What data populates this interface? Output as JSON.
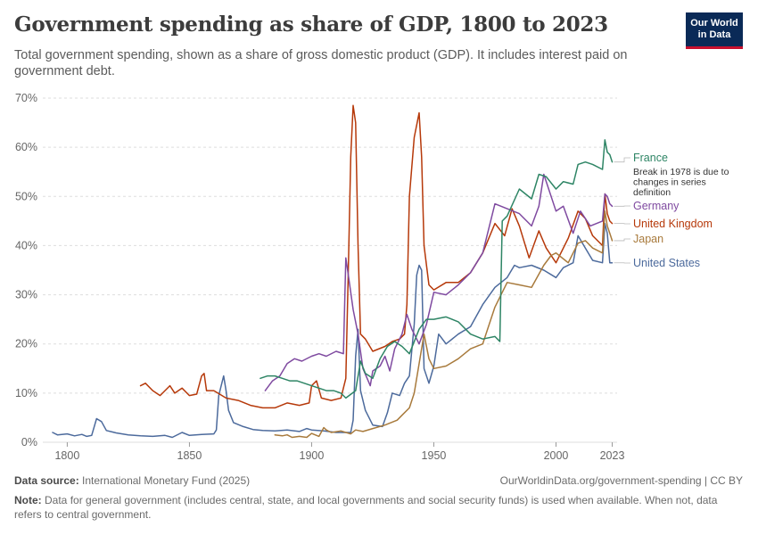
{
  "title": "Government spending as share of GDP, 1800 to 2023",
  "subtitle": "Total government spending, shown as a share of gross domestic product (GDP). It includes interest paid on government debt.",
  "logo": {
    "line1": "Our World",
    "line2": "in Data"
  },
  "footer": {
    "source_label": "Data source:",
    "source_text": " International Monetary Fund (2025)",
    "url_text": "OurWorldinData.org/government-spending | CC BY",
    "note_label": "Note:",
    "note_text": " Data for general government (includes central, state, and local governments and social security funds) is used when available. When not, data refers to central government."
  },
  "colors": {
    "France": "#2e8565",
    "Germany": "#7f4aa0",
    "United Kingdom": "#b6390a",
    "Japan": "#a87a3c",
    "United States": "#4c6a9c",
    "grid": "#dddddd",
    "axis_text": "#666666"
  },
  "chart_data": {
    "type": "line",
    "xlim": [
      1800,
      2023
    ],
    "ylim": [
      0,
      70
    ],
    "x_ticks": [
      1800,
      1850,
      1900,
      1950,
      2000,
      2023
    ],
    "x_tick_labels": [
      "1800",
      "1850",
      "1900",
      "1950",
      "2000",
      "2023"
    ],
    "y_ticks": [
      0,
      10,
      20,
      30,
      40,
      50,
      60,
      70
    ],
    "y_tick_labels": [
      "0%",
      "10%",
      "20%",
      "30%",
      "40%",
      "50%",
      "60%",
      "70%"
    ],
    "grid": "horizontal dashed",
    "legend": "right, labels at line ends",
    "annotations": [
      {
        "series": "France",
        "lines": [
          "Break in 1978 is due to",
          "changes in series",
          "definition"
        ]
      }
    ],
    "series": [
      {
        "name": "United States",
        "points": [
          [
            1794,
            2
          ],
          [
            1796,
            1.5
          ],
          [
            1800,
            1.7
          ],
          [
            1803,
            1.3
          ],
          [
            1806,
            1.6
          ],
          [
            1808,
            1.2
          ],
          [
            1810,
            1.4
          ],
          [
            1812,
            4.8
          ],
          [
            1814,
            4.2
          ],
          [
            1816,
            2.4
          ],
          [
            1820,
            1.9
          ],
          [
            1825,
            1.5
          ],
          [
            1830,
            1.3
          ],
          [
            1835,
            1.2
          ],
          [
            1840,
            1.4
          ],
          [
            1843,
            1.0
          ],
          [
            1847,
            2.0
          ],
          [
            1850,
            1.4
          ],
          [
            1855,
            1.6
          ],
          [
            1860,
            1.7
          ],
          [
            1861,
            2.5
          ],
          [
            1862,
            9.5
          ],
          [
            1864,
            13.5
          ],
          [
            1865,
            10.5
          ],
          [
            1866,
            6.5
          ],
          [
            1868,
            4.0
          ],
          [
            1872,
            3.2
          ],
          [
            1876,
            2.6
          ],
          [
            1880,
            2.4
          ],
          [
            1885,
            2.3
          ],
          [
            1890,
            2.5
          ],
          [
            1895,
            2.2
          ],
          [
            1898,
            2.8
          ],
          [
            1900,
            2.5
          ],
          [
            1905,
            2.3
          ],
          [
            1910,
            2.0
          ],
          [
            1914,
            2.0
          ],
          [
            1916,
            2.0
          ],
          [
            1917,
            4.5
          ],
          [
            1918,
            17.5
          ],
          [
            1919,
            23.0
          ],
          [
            1920,
            10.5
          ],
          [
            1922,
            6.5
          ],
          [
            1925,
            3.5
          ],
          [
            1929,
            3.2
          ],
          [
            1931,
            6.0
          ],
          [
            1933,
            10.0
          ],
          [
            1936,
            9.5
          ],
          [
            1938,
            12.0
          ],
          [
            1940,
            13.5
          ],
          [
            1942,
            24.0
          ],
          [
            1943,
            34.0
          ],
          [
            1944,
            36.0
          ],
          [
            1945,
            35.0
          ],
          [
            1946,
            15.0
          ],
          [
            1948,
            12.0
          ],
          [
            1950,
            15.5
          ],
          [
            1952,
            22.0
          ],
          [
            1955,
            20.0
          ],
          [
            1960,
            22.0
          ],
          [
            1965,
            23.5
          ],
          [
            1970,
            28.0
          ],
          [
            1975,
            31.5
          ],
          [
            1980,
            33.5
          ],
          [
            1983,
            36.0
          ],
          [
            1985,
            35.5
          ],
          [
            1990,
            36.0
          ],
          [
            1995,
            35.0
          ],
          [
            2000,
            33.5
          ],
          [
            2003,
            35.5
          ],
          [
            2007,
            36.5
          ],
          [
            2009,
            42.0
          ],
          [
            2012,
            39.5
          ],
          [
            2015,
            37.0
          ],
          [
            2019,
            36.5
          ],
          [
            2020,
            44.5
          ],
          [
            2021,
            42.5
          ],
          [
            2022,
            36.5
          ],
          [
            2023,
            36.5
          ]
        ]
      },
      {
        "name": "United Kingdom",
        "points": [
          [
            1830,
            11.5
          ],
          [
            1832,
            12.0
          ],
          [
            1835,
            10.5
          ],
          [
            1838,
            9.5
          ],
          [
            1842,
            11.5
          ],
          [
            1844,
            10.0
          ],
          [
            1847,
            11.0
          ],
          [
            1850,
            9.5
          ],
          [
            1853,
            9.8
          ],
          [
            1855,
            13.5
          ],
          [
            1856,
            14.0
          ],
          [
            1857,
            10.5
          ],
          [
            1860,
            10.5
          ],
          [
            1865,
            9.0
          ],
          [
            1870,
            8.5
          ],
          [
            1875,
            7.5
          ],
          [
            1880,
            7.0
          ],
          [
            1885,
            7.0
          ],
          [
            1890,
            8.0
          ],
          [
            1895,
            7.5
          ],
          [
            1899,
            8.0
          ],
          [
            1900,
            11.5
          ],
          [
            1902,
            12.5
          ],
          [
            1904,
            9.0
          ],
          [
            1908,
            8.5
          ],
          [
            1912,
            9.0
          ],
          [
            1914,
            13.0
          ],
          [
            1915,
            35.0
          ],
          [
            1916,
            58.0
          ],
          [
            1917,
            68.5
          ],
          [
            1918,
            65.0
          ],
          [
            1919,
            40.0
          ],
          [
            1920,
            22.0
          ],
          [
            1922,
            21.0
          ],
          [
            1925,
            18.5
          ],
          [
            1930,
            19.5
          ],
          [
            1933,
            20.5
          ],
          [
            1936,
            21.0
          ],
          [
            1938,
            22.0
          ],
          [
            1939,
            28.0
          ],
          [
            1940,
            50.0
          ],
          [
            1942,
            62.0
          ],
          [
            1944,
            67.0
          ],
          [
            1945,
            58.0
          ],
          [
            1946,
            40.0
          ],
          [
            1948,
            32.0
          ],
          [
            1950,
            31.0
          ],
          [
            1955,
            32.5
          ],
          [
            1960,
            32.5
          ],
          [
            1965,
            34.5
          ],
          [
            1970,
            38.5
          ],
          [
            1975,
            44.5
          ],
          [
            1979,
            42.0
          ],
          [
            1982,
            47.5
          ],
          [
            1985,
            44.0
          ],
          [
            1989,
            37.5
          ],
          [
            1993,
            43.0
          ],
          [
            1996,
            39.5
          ],
          [
            2000,
            36.5
          ],
          [
            2005,
            41.5
          ],
          [
            2009,
            47.0
          ],
          [
            2012,
            45.5
          ],
          [
            2015,
            42.0
          ],
          [
            2019,
            40.0
          ],
          [
            2020,
            50.5
          ],
          [
            2021,
            46.5
          ],
          [
            2022,
            45.0
          ],
          [
            2023,
            44.5
          ]
        ]
      },
      {
        "name": "Japan",
        "points": [
          [
            1885,
            1.5
          ],
          [
            1888,
            1.3
          ],
          [
            1890,
            1.5
          ],
          [
            1892,
            1.0
          ],
          [
            1895,
            1.2
          ],
          [
            1898,
            1.0
          ],
          [
            1900,
            1.8
          ],
          [
            1903,
            1.2
          ],
          [
            1905,
            3.0
          ],
          [
            1906,
            2.5
          ],
          [
            1908,
            2.0
          ],
          [
            1912,
            2.3
          ],
          [
            1916,
            1.7
          ],
          [
            1918,
            2.5
          ],
          [
            1921,
            2.2
          ],
          [
            1925,
            2.8
          ],
          [
            1930,
            3.5
          ],
          [
            1935,
            4.5
          ],
          [
            1937,
            5.5
          ],
          [
            1940,
            7.0
          ],
          [
            1942,
            10.0
          ],
          [
            1944,
            16.0
          ],
          [
            1946,
            22.0
          ],
          [
            1948,
            17.0
          ],
          [
            1950,
            15.0
          ],
          [
            1955,
            15.5
          ],
          [
            1960,
            17.0
          ],
          [
            1965,
            19.0
          ],
          [
            1970,
            20.0
          ],
          [
            1975,
            27.5
          ],
          [
            1980,
            32.5
          ],
          [
            1985,
            32.0
          ],
          [
            1990,
            31.5
          ],
          [
            1995,
            36.0
          ],
          [
            1998,
            38.0
          ],
          [
            2000,
            38.5
          ],
          [
            2005,
            36.5
          ],
          [
            2009,
            40.5
          ],
          [
            2012,
            41.0
          ],
          [
            2015,
            39.5
          ],
          [
            2019,
            38.5
          ],
          [
            2020,
            47.0
          ],
          [
            2021,
            44.0
          ],
          [
            2022,
            42.5
          ],
          [
            2023,
            41.0
          ]
        ]
      },
      {
        "name": "Germany",
        "points": [
          [
            1881,
            10.5
          ],
          [
            1884,
            12.5
          ],
          [
            1887,
            13.5
          ],
          [
            1890,
            16.0
          ],
          [
            1893,
            17.0
          ],
          [
            1896,
            16.5
          ],
          [
            1900,
            17.5
          ],
          [
            1903,
            18.0
          ],
          [
            1906,
            17.5
          ],
          [
            1910,
            18.5
          ],
          [
            1913,
            18.0
          ],
          [
            1914,
            37.5
          ],
          [
            1915,
            34.0
          ],
          [
            1917,
            27.0
          ],
          [
            1919,
            22.0
          ],
          [
            1921,
            15.0
          ],
          [
            1924,
            11.5
          ],
          [
            1925,
            14.5
          ],
          [
            1928,
            15.5
          ],
          [
            1930,
            17.5
          ],
          [
            1932,
            14.5
          ],
          [
            1934,
            19.0
          ],
          [
            1937,
            22.0
          ],
          [
            1939,
            26.0
          ],
          [
            1941,
            23.0
          ],
          [
            1944,
            20.0
          ],
          [
            1947,
            24.0
          ],
          [
            1950,
            30.5
          ],
          [
            1955,
            30.0
          ],
          [
            1960,
            32.0
          ],
          [
            1965,
            34.5
          ],
          [
            1970,
            38.5
          ],
          [
            1975,
            48.5
          ],
          [
            1980,
            47.5
          ],
          [
            1985,
            46.5
          ],
          [
            1990,
            44.0
          ],
          [
            1993,
            48.0
          ],
          [
            1995,
            54.5
          ],
          [
            2000,
            47.0
          ],
          [
            2003,
            48.0
          ],
          [
            2007,
            42.5
          ],
          [
            2010,
            47.0
          ],
          [
            2014,
            44.0
          ],
          [
            2019,
            45.0
          ],
          [
            2020,
            50.5
          ],
          [
            2021,
            50.0
          ],
          [
            2022,
            48.5
          ],
          [
            2023,
            48.0
          ]
        ]
      },
      {
        "name": "France",
        "points": [
          [
            1879,
            13.0
          ],
          [
            1882,
            13.5
          ],
          [
            1885,
            13.5
          ],
          [
            1888,
            13.0
          ],
          [
            1891,
            12.5
          ],
          [
            1894,
            12.5
          ],
          [
            1897,
            12.0
          ],
          [
            1900,
            11.5
          ],
          [
            1903,
            11.0
          ],
          [
            1906,
            10.5
          ],
          [
            1909,
            10.5
          ],
          [
            1912,
            10.0
          ],
          [
            1914,
            9.0
          ],
          [
            1918,
            10.5
          ],
          [
            1920,
            16.5
          ],
          [
            1922,
            14.0
          ],
          [
            1925,
            13.0
          ],
          [
            1928,
            17.0
          ],
          [
            1931,
            19.5
          ],
          [
            1934,
            20.5
          ],
          [
            1937,
            19.5
          ],
          [
            1940,
            18.0
          ],
          [
            1944,
            23.0
          ],
          [
            1947,
            25.0
          ],
          [
            1950,
            25.0
          ],
          [
            1955,
            25.5
          ],
          [
            1960,
            24.5
          ],
          [
            1965,
            22.0
          ],
          [
            1970,
            21.0
          ],
          [
            1975,
            21.5
          ],
          [
            1977,
            20.5
          ],
          [
            1978,
            45.0
          ],
          [
            1980,
            46.0
          ],
          [
            1985,
            51.5
          ],
          [
            1990,
            49.5
          ],
          [
            1993,
            54.5
          ],
          [
            1996,
            54.0
          ],
          [
            2000,
            51.5
          ],
          [
            2003,
            53.0
          ],
          [
            2007,
            52.5
          ],
          [
            2009,
            56.5
          ],
          [
            2012,
            57.0
          ],
          [
            2015,
            56.5
          ],
          [
            2019,
            55.5
          ],
          [
            2020,
            61.5
          ],
          [
            2021,
            59.0
          ],
          [
            2022,
            58.5
          ],
          [
            2023,
            57.0
          ]
        ]
      }
    ]
  }
}
